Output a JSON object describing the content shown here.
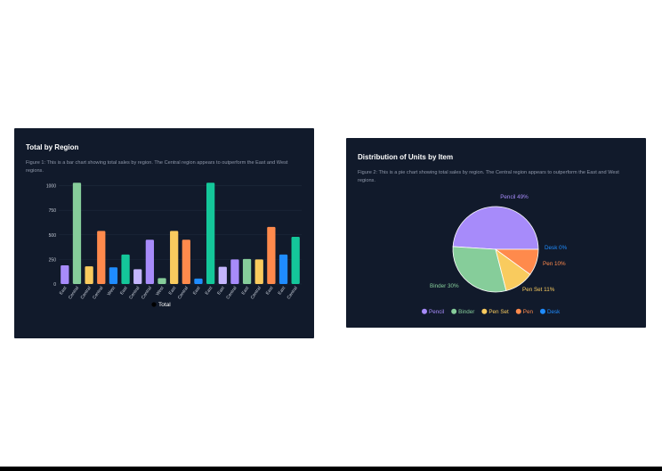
{
  "cards": [
    {
      "title": "Total by Region",
      "caption": "Figure 1: This is a bar chart showing total sales by region. The Central region appears to outperform the East and West regions."
    },
    {
      "title": "Distribution of Units by Item",
      "caption": "Figure 2: This is a pie chart showing total sales by region. The Central region appears to outperform the East and West regions."
    }
  ],
  "chart_data": [
    {
      "type": "bar",
      "title": "Total by Region",
      "categories": [
        "East",
        "Central",
        "Central",
        "Central",
        "West",
        "East",
        "Central",
        "Central",
        "West",
        "East",
        "Central",
        "East",
        "East",
        "East",
        "Central",
        "East",
        "Central",
        "East",
        "East",
        "Central"
      ],
      "series": [
        {
          "name": "Total",
          "values": [
            190,
            1030,
            180,
            540,
            170,
            300,
            150,
            450,
            60,
            540,
            450,
            55,
            1030,
            175,
            250,
            255,
            250,
            580,
            300,
            480
          ],
          "colors": [
            "#a78bfa",
            "#86cd9a",
            "#f9cb5e",
            "#ff8a4c",
            "#1f8cff",
            "#14c79a",
            "#c4b5fd",
            "#a78bfa",
            "#86cd9a",
            "#f9cb5e",
            "#ff8a4c",
            "#1f8cff",
            "#14c79a",
            "#c4b5fd",
            "#a78bfa",
            "#86cd9a",
            "#f9cb5e",
            "#ff8a4c",
            "#1f8cff",
            "#14c79a"
          ]
        }
      ],
      "yticks": [
        0,
        250,
        500,
        750,
        1000
      ],
      "ylim": [
        0,
        1050
      ],
      "grid": true,
      "legend": "bottom"
    },
    {
      "type": "pie",
      "title": "Distribution of Units by Item",
      "slices": [
        {
          "label": "Pencil",
          "value": 49,
          "color": "#a78bfa",
          "data_label": "Pencil 49%"
        },
        {
          "label": "Binder",
          "value": 30,
          "color": "#86cd9a",
          "data_label": "Binder 30%"
        },
        {
          "label": "Pen Set",
          "value": 11,
          "color": "#f9cb5e",
          "data_label": "Pen Set 11%"
        },
        {
          "label": "Pen",
          "value": 10,
          "color": "#ff8a4c",
          "data_label": "Pen 10%"
        },
        {
          "label": "Desk",
          "value": 0,
          "color": "#1f8cff",
          "data_label": "Desk 0%"
        }
      ],
      "legend": "bottom"
    }
  ]
}
